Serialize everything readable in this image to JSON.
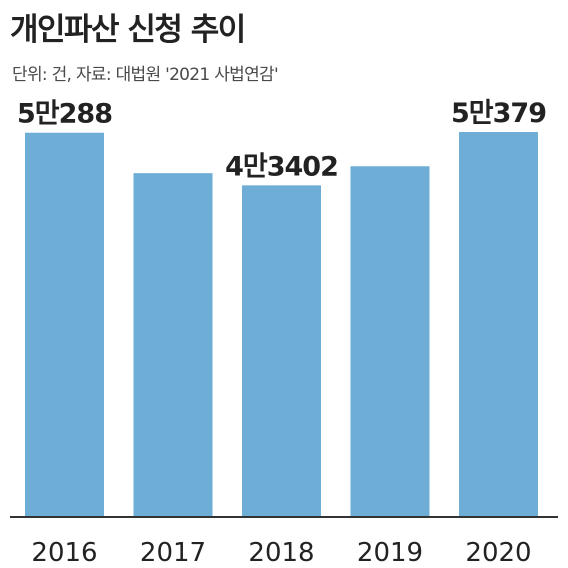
{
  "title": "개인파산 신청 추이",
  "subtitle": "단위: 건, 자료: 대법원 '2021 사법연감'",
  "chart_data": {
    "type": "bar",
    "categories": [
      "2016",
      "2017",
      "2018",
      "2019",
      "2020"
    ],
    "values": [
      50288,
      45000,
      43402,
      45900,
      50379
    ],
    "data_labels": [
      "5만288",
      "",
      "4만3402",
      "",
      "5만379"
    ],
    "ylim": [
      0,
      53000
    ],
    "bar_color": "#6eadd6",
    "axis_color": "#333333",
    "grid": false,
    "legend": false
  }
}
